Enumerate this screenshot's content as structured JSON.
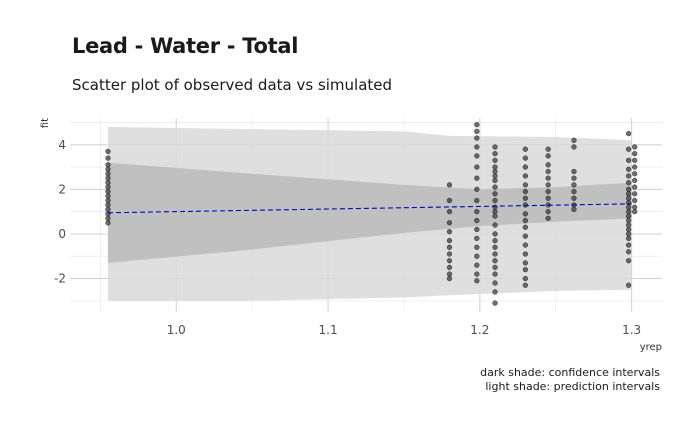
{
  "chart_data": {
    "type": "scatter",
    "title": "Lead - Water - Total",
    "subtitle": "Scatter plot of observed data vs simulated",
    "xlabel": "yrep",
    "ylabel": "fit",
    "xlim": [
      0.93,
      1.32
    ],
    "ylim": [
      -3.5,
      5.2
    ],
    "x_ticks": [
      1.0,
      1.1,
      1.2,
      1.3
    ],
    "x_tick_labels": [
      "1.0",
      "1.1",
      "1.2",
      "1.3"
    ],
    "y_ticks": [
      -2,
      0,
      2,
      4
    ],
    "y_tick_labels": [
      "-2",
      "0",
      "2",
      "4"
    ],
    "grid": true,
    "fit_line": {
      "style": "dashed",
      "color": "#0000cc",
      "x": [
        0.955,
        1.3
      ],
      "y": [
        0.95,
        1.35
      ]
    },
    "prediction_interval": {
      "color": "#d9d9d9",
      "x": [
        0.955,
        1.05,
        1.15,
        1.18,
        1.25,
        1.3
      ],
      "lower": [
        -3.0,
        -3.0,
        -2.85,
        -2.75,
        -2.55,
        -2.5
      ],
      "upper": [
        4.8,
        4.7,
        4.6,
        4.4,
        4.35,
        4.2
      ]
    },
    "confidence_interval": {
      "color": "#bdbdbd",
      "x": [
        0.955,
        1.05,
        1.15,
        1.2,
        1.25,
        1.3
      ],
      "lower": [
        -1.3,
        -0.7,
        0.05,
        0.35,
        0.55,
        0.7
      ],
      "upper": [
        3.2,
        2.7,
        2.2,
        2.0,
        2.1,
        2.3
      ]
    },
    "point_groups": [
      {
        "x": 0.955,
        "y": [
          3.7,
          3.4,
          3.1,
          2.9,
          2.7,
          2.5,
          2.3,
          2.1,
          1.9,
          1.7,
          1.5,
          1.3,
          1.1,
          0.9,
          0.7,
          0.5
        ]
      },
      {
        "x": 1.18,
        "y": [
          2.2,
          1.5,
          1.0,
          0.5,
          0.1,
          -0.3,
          -0.6,
          -0.9,
          -1.2,
          -1.5,
          -1.8,
          -2.0
        ]
      },
      {
        "x": 1.198,
        "y": [
          4.9,
          4.6,
          4.3,
          3.9,
          3.5,
          3.0,
          2.5,
          2.0,
          1.5,
          1.0,
          0.6,
          0.2,
          -0.2,
          -0.6,
          -1.0,
          -1.4,
          -1.8,
          -2.1
        ]
      },
      {
        "x": 1.21,
        "y": [
          3.9,
          3.6,
          3.3,
          3.0,
          2.8,
          2.6,
          2.4,
          2.1,
          1.8,
          1.5,
          1.2,
          1.0,
          0.8,
          0.4,
          0.0,
          -0.3,
          -0.6,
          -0.9,
          -1.2,
          -1.5,
          -1.8,
          -2.2,
          -2.6,
          -3.1
        ]
      },
      {
        "x": 1.23,
        "y": [
          3.8,
          3.4,
          3.0,
          2.6,
          2.2,
          1.9,
          1.6,
          1.3,
          0.9,
          0.6,
          0.3,
          -0.1,
          -0.5,
          -0.9,
          -1.3,
          -1.6,
          -2.0,
          -2.3
        ]
      },
      {
        "x": 1.245,
        "y": [
          3.8,
          3.5,
          3.1,
          2.8,
          2.5,
          2.2,
          1.9,
          1.6,
          1.3,
          1.0,
          0.7
        ]
      },
      {
        "x": 1.262,
        "y": [
          4.2,
          3.9,
          2.8,
          2.5,
          2.2,
          1.9,
          1.6,
          1.3,
          1.1
        ]
      },
      {
        "x": 1.298,
        "y": [
          4.5,
          3.8,
          3.3,
          2.9,
          2.6,
          2.3,
          2.0,
          1.8,
          1.6,
          1.4,
          1.2,
          1.0,
          0.8,
          0.6,
          0.4,
          0.2,
          0.0,
          -0.2,
          -0.5,
          -0.8,
          -1.2,
          -2.3
        ]
      },
      {
        "x": 1.302,
        "y": [
          3.9,
          3.6,
          3.3,
          3.0,
          2.7,
          2.4,
          2.1,
          1.8,
          1.5,
          1.2,
          1.0
        ]
      }
    ],
    "point_color": "#333333",
    "caption": [
      "dark shade: confidence intervals",
      "light shade: prediction intervals"
    ]
  }
}
